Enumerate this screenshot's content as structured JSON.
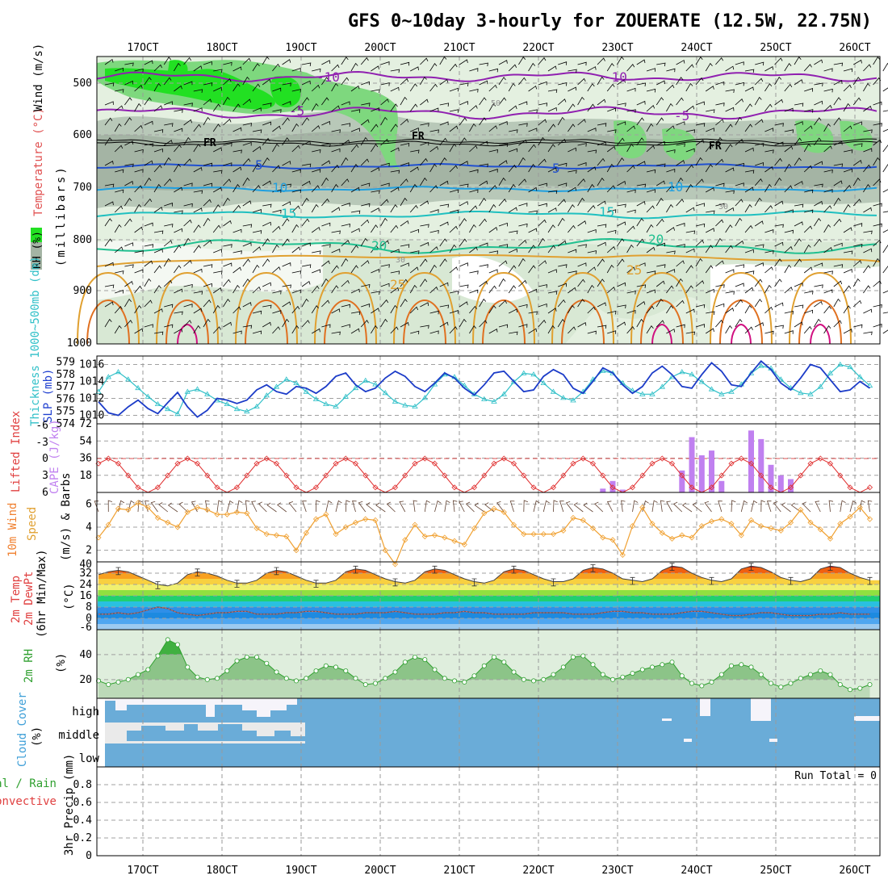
{
  "title": "GFS 0~10day 3-hourly for ZOUERATE (12.5W, 22.75N)",
  "x_ticks": [
    "17OCT",
    "18OCT",
    "19OCT",
    "20OCT",
    "21OCT",
    "22OCT",
    "23OCT",
    "24OCT",
    "25OCT",
    "26OCT"
  ],
  "run_total": "Run Total = 0",
  "panels": {
    "upper_air": {
      "labels": [
        "RH (%)",
        "Temperature (°C)",
        "Wind (m/s)",
        "(millibars)"
      ],
      "y_ticks": [
        "500",
        "600",
        "700",
        "800",
        "900",
        "1000"
      ],
      "contour_labels": [
        "-10",
        "-5",
        "FR",
        "5",
        "10",
        "15",
        "20",
        "25",
        "30",
        "50"
      ]
    },
    "slp_thickness": {
      "labels": [
        "Thickness 1000~500mb (dm)",
        "SLP (mb)"
      ],
      "thickness_ticks": [
        "579",
        "578",
        "577",
        "576",
        "575",
        "574"
      ],
      "slp_ticks": [
        "1016",
        "1014",
        "1012",
        "1010"
      ]
    },
    "cape_li": {
      "labels": [
        "Lifted Index",
        "CAPE (J/kg)"
      ],
      "li_ticks": [
        "-6",
        "-3",
        "0",
        "3",
        "6"
      ],
      "cape_ticks": [
        "72",
        "54",
        "36",
        "18"
      ]
    },
    "wind10m": {
      "labels": [
        "10m Wind",
        "Speed",
        "(m/s) & Barbs"
      ],
      "y_ticks": [
        "6",
        "4",
        "2"
      ]
    },
    "temp2m": {
      "labels": [
        "2m Temp",
        "2m DewPt",
        "(6hr Min/Max)",
        "(°C)"
      ],
      "y_ticks": [
        "40",
        "32",
        "24",
        "16",
        "8",
        "0",
        "-6"
      ]
    },
    "rh2m": {
      "labels": [
        "2m RH",
        "(%)"
      ],
      "y_ticks": [
        "40",
        "20"
      ]
    },
    "cloud": {
      "labels": [
        "Cloud Cover",
        "(%)"
      ],
      "rows": [
        "high",
        "middle",
        "low"
      ]
    },
    "precip": {
      "labels": [
        "Total / Rain",
        "Convective",
        "3hr Precip (mm)"
      ],
      "y_ticks": [
        "0.8",
        "0.6",
        "0.4",
        "0.2",
        "0"
      ]
    }
  },
  "chart_data": [
    {
      "type": "line",
      "title": "Thickness 1000-500mb (dm) / SLP (mb)",
      "x": [
        "16OCT12",
        "16OCT15",
        "16OCT18",
        "16OCT21",
        "17OCT00",
        "17OCT03",
        "17OCT06",
        "17OCT09",
        "17OCT12",
        "17OCT15",
        "17OCT18",
        "17OCT21",
        "18OCT00",
        "18OCT03",
        "18OCT06",
        "18OCT09",
        "18OCT12",
        "18OCT15",
        "18OCT18",
        "18OCT21",
        "19OCT00",
        "19OCT03",
        "19OCT06",
        "19OCT09",
        "19OCT12",
        "19OCT15",
        "19OCT18",
        "19OCT21",
        "20OCT00",
        "20OCT03",
        "20OCT06",
        "20OCT09",
        "20OCT12",
        "20OCT15",
        "20OCT18",
        "20OCT21",
        "21OCT00",
        "21OCT03",
        "21OCT06",
        "21OCT09",
        "21OCT12",
        "21OCT15",
        "21OCT18",
        "21OCT21",
        "22OCT00",
        "22OCT03",
        "22OCT06",
        "22OCT09",
        "22OCT12",
        "22OCT15",
        "22OCT18",
        "22OCT21",
        "23OCT00",
        "23OCT03",
        "23OCT06",
        "23OCT09",
        "23OCT12",
        "23OCT15",
        "23OCT18",
        "23OCT21",
        "24OCT00",
        "24OCT03",
        "24OCT06",
        "24OCT09",
        "24OCT12",
        "24OCT15",
        "24OCT18",
        "24OCT21",
        "25OCT00",
        "25OCT03",
        "25OCT06",
        "25OCT09",
        "25OCT12",
        "25OCT15",
        "25OCT18",
        "25OCT21",
        "26OCT00",
        "26OCT03",
        "26OCT06"
      ],
      "series": [
        {
          "name": "Thickness (dm)",
          "color": "#30c0c8",
          "values": [
            576.6,
            577.8,
            578.2,
            577.6,
            576.9,
            576.2,
            575.6,
            575.2,
            574.8,
            576.6,
            576.8,
            576.4,
            575.9,
            575.6,
            575.2,
            575.0,
            575.4,
            576.3,
            577.0,
            577.6,
            577.3,
            576.6,
            576.0,
            575.6,
            575.4,
            576.2,
            576.9,
            577.5,
            577.2,
            576.5,
            575.8,
            575.5,
            575.4,
            576.1,
            577.2,
            578.0,
            577.8,
            577.1,
            576.4,
            576.0,
            575.8,
            576.4,
            577.4,
            578.1,
            578.0,
            577.3,
            576.6,
            576.1,
            575.9,
            576.6,
            577.6,
            578.3,
            578.1,
            577.3,
            576.7,
            576.4,
            576.4,
            577.0,
            577.8,
            578.2,
            578.0,
            577.4,
            576.8,
            576.4,
            576.6,
            577.2,
            578.1,
            578.7,
            578.5,
            577.6,
            576.9,
            576.5,
            576.4,
            577.0,
            578.1,
            578.8,
            578.6,
            577.8,
            577.1
          ]
        },
        {
          "name": "SLP (mb)",
          "color": "#1c3cc8",
          "values": [
            1011.6,
            1010.3,
            1010.0,
            1011.0,
            1011.8,
            1010.8,
            1010.2,
            1011.5,
            1012.7,
            1011.0,
            1009.8,
            1010.6,
            1012.0,
            1011.8,
            1011.4,
            1011.8,
            1013.0,
            1013.6,
            1012.8,
            1012.5,
            1013.4,
            1013.2,
            1012.6,
            1013.4,
            1014.6,
            1015.0,
            1013.6,
            1012.8,
            1013.2,
            1014.4,
            1015.2,
            1014.6,
            1013.4,
            1012.8,
            1013.8,
            1015.0,
            1014.4,
            1013.2,
            1012.4,
            1013.6,
            1015.0,
            1015.2,
            1014.0,
            1012.8,
            1013.0,
            1014.6,
            1015.4,
            1014.8,
            1013.2,
            1012.6,
            1014.0,
            1015.6,
            1015.0,
            1013.6,
            1012.6,
            1013.4,
            1015.0,
            1015.8,
            1014.8,
            1013.4,
            1013.2,
            1014.8,
            1016.2,
            1015.2,
            1013.6,
            1013.4,
            1015.0,
            1016.4,
            1015.4,
            1013.8,
            1013.0,
            1014.4,
            1016.0,
            1015.6,
            1014.2,
            1012.8,
            1013.0,
            1014.0,
            1013.2
          ]
        }
      ],
      "ylim_thickness": [
        574,
        579.5
      ],
      "ylim_slp": [
        1009,
        1017
      ]
    },
    {
      "type": "bar",
      "title": "CAPE (J/kg) & Lifted Index",
      "x": [
        "22OCT21",
        "23OCT00",
        "23OCT03",
        "23OCT06",
        "23OCT09",
        "23OCT12",
        "23OCT15",
        "23OCT18",
        "23OCT21",
        "24OCT00",
        "24OCT03",
        "24OCT06",
        "24OCT09",
        "24OCT12",
        "24OCT15",
        "24OCT18",
        "24OCT21",
        "25OCT00",
        "25OCT03",
        "25OCT06"
      ],
      "series": [
        {
          "name": "CAPE",
          "color": "#c080f0",
          "values": [
            4,
            12,
            3,
            0,
            0,
            0,
            0,
            0,
            23,
            58,
            39,
            44,
            12,
            0,
            0,
            65,
            56,
            29,
            18,
            14
          ]
        }
      ],
      "li_series": {
        "name": "Lifted Index",
        "color": "#e03030",
        "values_note": "diurnal oscillation between about 0 and 6"
      },
      "ylim": [
        0,
        72
      ]
    },
    {
      "type": "line",
      "title": "10m Wind Speed (m/s)",
      "series": [
        {
          "name": "Speed",
          "color": "#f0a030",
          "values": [
            3.1,
            4.2,
            5.6,
            5.5,
            6.1,
            5.7,
            4.8,
            4.4,
            4.0,
            5.3,
            5.7,
            5.5,
            5.1,
            5.1,
            5.3,
            5.2,
            3.9,
            3.4,
            3.3,
            3.2,
            2.0,
            3.5,
            4.7,
            5.1,
            3.4,
            4.0,
            4.4,
            4.7,
            4.6,
            2.0,
            0.8,
            2.9,
            4.2,
            3.2,
            3.3,
            3.1,
            2.8,
            2.5,
            3.9,
            5.2,
            5.6,
            5.3,
            4.2,
            3.4,
            3.4,
            3.4,
            3.4,
            3.7,
            4.8,
            4.6,
            3.9,
            3.1,
            2.9,
            1.6,
            4.1,
            5.7,
            4.3,
            3.5,
            3.0,
            3.3,
            3.1,
            4.1,
            4.5,
            4.7,
            4.3,
            3.3,
            4.6,
            4.1,
            3.9,
            3.7,
            4.4,
            5.5,
            4.4,
            3.8,
            3.0,
            4.3,
            4.9,
            5.7,
            4.7
          ]
        }
      ],
      "ylim": [
        1,
        7
      ]
    },
    {
      "type": "area",
      "title": "2m Temp / 2m DewPt (°C)",
      "series": [
        {
          "name": "2m Temp",
          "color": "#404040",
          "values": [
            31,
            33,
            34,
            33,
            30,
            27,
            24,
            23,
            25,
            31,
            33,
            32,
            30,
            27,
            25,
            25,
            27,
            32,
            34,
            33,
            30,
            27,
            25,
            25,
            27,
            33,
            35,
            34,
            31,
            28,
            26,
            25,
            27,
            33,
            35,
            34,
            31,
            28,
            26,
            25,
            27,
            33,
            35,
            34,
            31,
            28,
            26,
            26,
            28,
            34,
            36,
            35,
            32,
            28,
            27,
            26,
            28,
            34,
            37,
            36,
            32,
            29,
            27,
            26,
            28,
            35,
            37,
            36,
            33,
            29,
            27,
            26,
            28,
            35,
            37,
            36,
            32,
            29,
            27
          ]
        },
        {
          "name": "2m DewPt",
          "color": "#ff6060",
          "values": [
            3,
            3,
            4,
            3,
            4,
            6,
            8,
            7,
            4,
            3,
            2,
            3,
            4,
            4,
            5,
            5,
            3,
            3,
            3,
            4,
            4,
            5,
            5,
            4,
            3,
            3,
            3,
            4,
            4,
            4,
            5,
            4,
            3,
            3,
            3,
            4,
            4,
            5,
            4,
            4,
            3,
            3,
            3,
            3,
            4,
            4,
            4,
            4,
            3,
            3,
            3,
            4,
            5,
            5,
            4,
            4,
            3,
            3,
            3,
            4,
            5,
            5,
            4,
            3,
            2,
            2,
            3,
            4,
            4,
            3,
            2,
            2,
            2,
            3,
            3,
            4,
            3,
            3,
            3
          ]
        }
      ],
      "ylim": [
        -8,
        40
      ]
    },
    {
      "type": "area",
      "title": "2m RH (%)",
      "series": [
        {
          "name": "2m RH",
          "color": "#30a030",
          "values": [
            19,
            16,
            18,
            20,
            24,
            28,
            39,
            52,
            48,
            30,
            22,
            20,
            21,
            27,
            35,
            38,
            38,
            33,
            26,
            21,
            19,
            21,
            27,
            31,
            30,
            27,
            21,
            16,
            17,
            21,
            26,
            34,
            38,
            36,
            28,
            21,
            19,
            18,
            23,
            31,
            38,
            34,
            26,
            20,
            19,
            20,
            24,
            30,
            38,
            39,
            32,
            24,
            20,
            22,
            25,
            28,
            30,
            32,
            34,
            23,
            17,
            15,
            18,
            24,
            31,
            32,
            30,
            24,
            17,
            14,
            17,
            21,
            24,
            27,
            24,
            16,
            12,
            13,
            16
          ]
        }
      ],
      "ylim": [
        5,
        60
      ]
    },
    {
      "type": "bar",
      "title": "3hr Precip (mm)",
      "series": [
        {
          "name": "Total / Rain",
          "values": [
            0
          ]
        },
        {
          "name": "Convective",
          "values": [
            0
          ]
        }
      ],
      "ylim": [
        0,
        1
      ]
    }
  ]
}
